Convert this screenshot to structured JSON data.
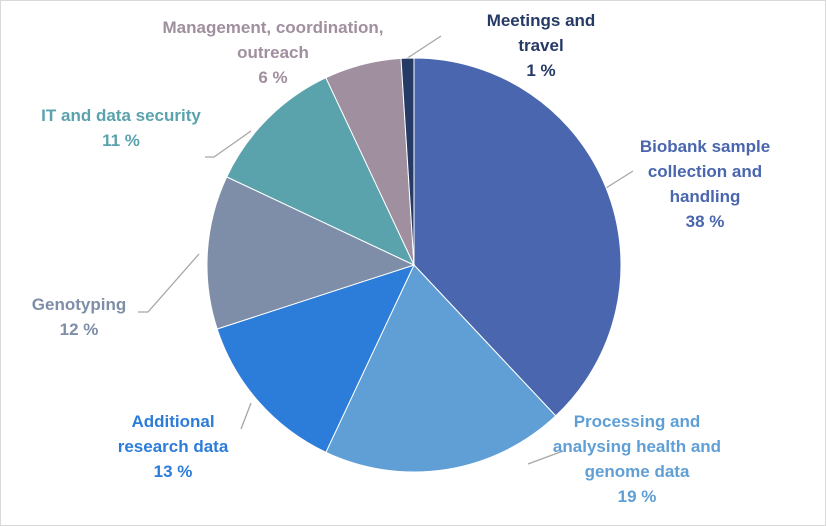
{
  "chart_data": {
    "type": "pie",
    "categories": [
      "Biobank sample\ncollection and\nhandling",
      "Processing and\nanalysing health and\ngenome data",
      "Additional\nresearch data",
      "Genotyping",
      "IT and data security",
      "Management, coordination,\noutreach",
      "Meetings and\ntravel"
    ],
    "values": [
      38,
      19,
      13,
      12,
      11,
      6,
      1
    ],
    "value_labels": [
      "38 %",
      "19 %",
      "13 %",
      "12 %",
      "11 %",
      "6 %",
      "1 %"
    ],
    "colors": [
      "#4a66ae",
      "#5f9fd6",
      "#2c7cd9",
      "#7f8ea8",
      "#5aa3ad",
      "#a08f9e",
      "#263a66"
    ]
  }
}
